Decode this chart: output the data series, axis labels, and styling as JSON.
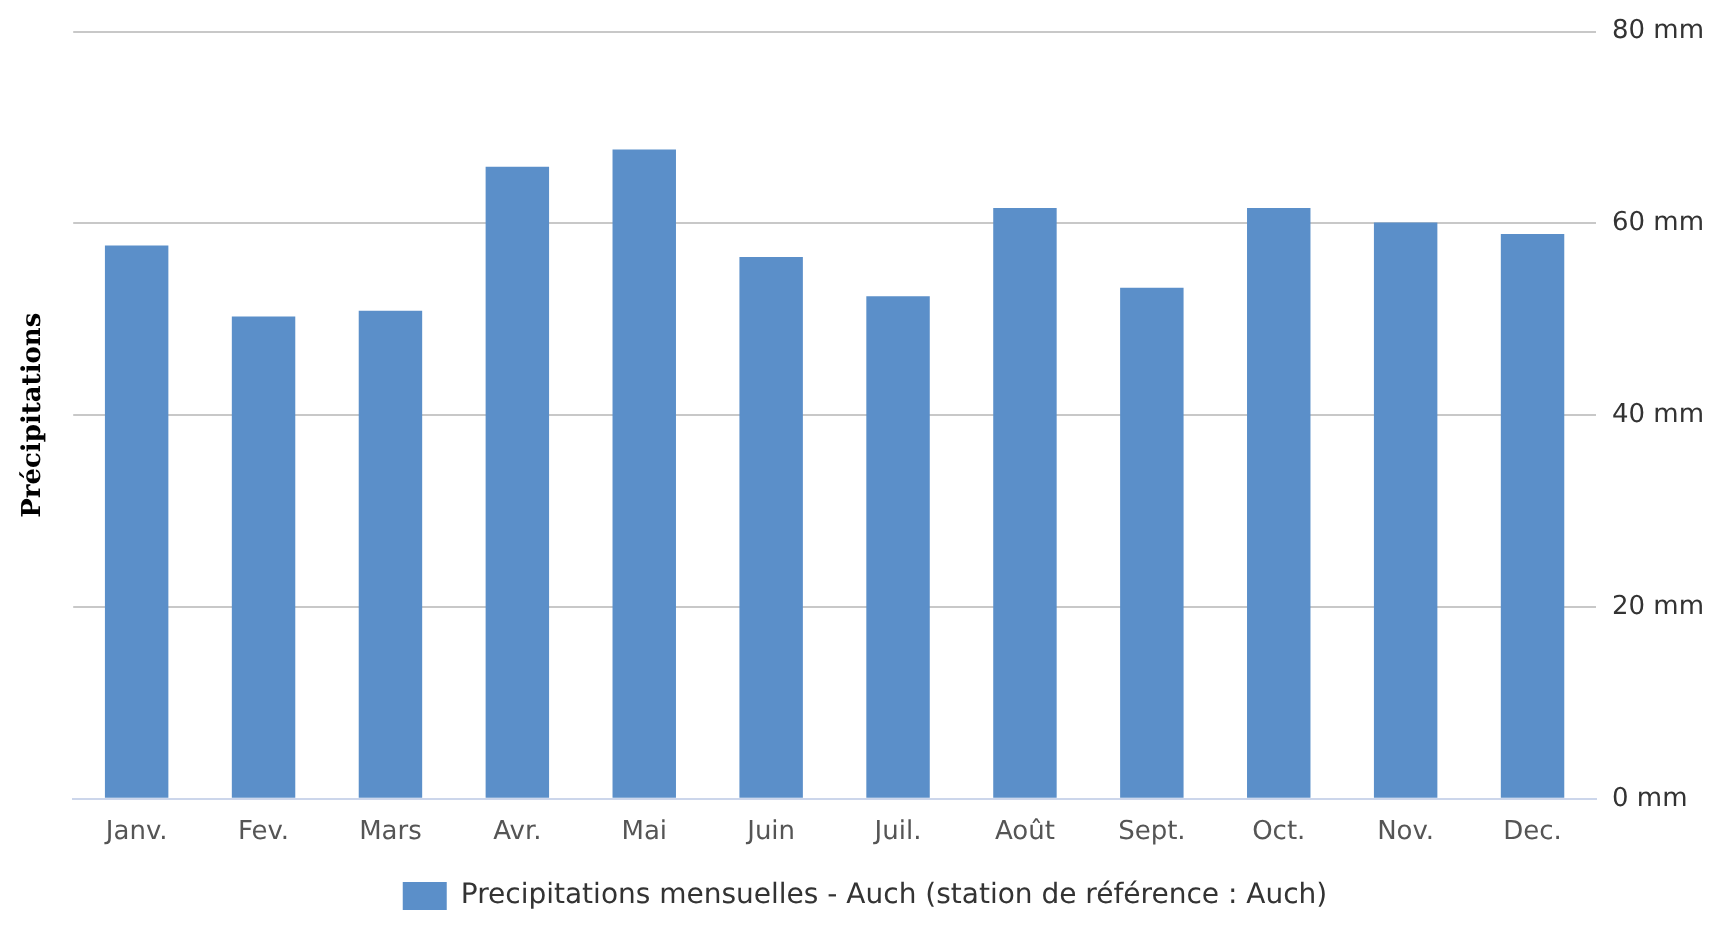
{
  "chart_data": {
    "type": "bar",
    "ylabel": "Précipitations",
    "categories": [
      "Janv.",
      "Fev.",
      "Mars",
      "Avr.",
      "Mai",
      "Juin",
      "Juil.",
      "Août",
      "Sept.",
      "Oct.",
      "Nov.",
      "Dec."
    ],
    "series": [
      {
        "name": "Precipitations mensuelles - Auch (station de référence : Auch)",
        "color": "#5b8fc9",
        "values": [
          57.7,
          50.3,
          50.9,
          65.9,
          67.7,
          56.5,
          52.4,
          61.6,
          53.3,
          61.6,
          60.1,
          58.9
        ]
      }
    ],
    "ylim": [
      0,
      80
    ],
    "yticks": [
      {
        "value": 0,
        "label": "0 mm"
      },
      {
        "value": 20,
        "label": "20 mm"
      },
      {
        "value": 40,
        "label": "40 mm"
      },
      {
        "value": 60,
        "label": "60 mm"
      },
      {
        "value": 80,
        "label": "80 mm"
      }
    ],
    "grid": "y",
    "legend": "bottom"
  }
}
